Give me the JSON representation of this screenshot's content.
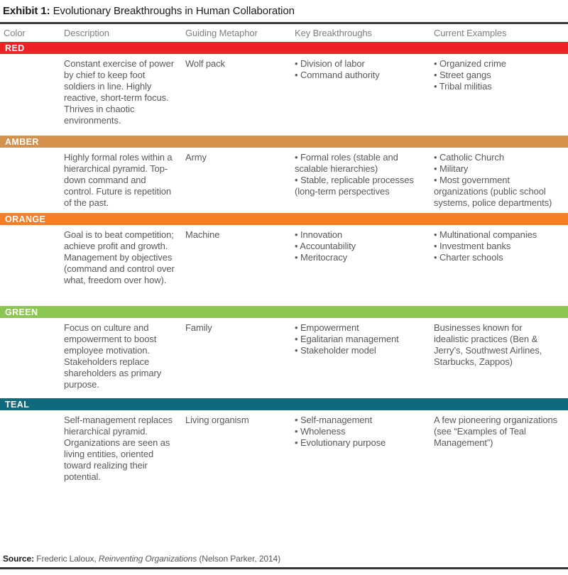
{
  "title": {
    "prefix": "Exhibit 1:",
    "rest": " Evolutionary Breakthroughs in Human Collaboration"
  },
  "header": {
    "columns": [
      "Color",
      "Description",
      "Guiding Metaphor",
      "Key Breakthroughs",
      "Current Examples"
    ]
  },
  "rows": [
    {
      "label": "RED",
      "color": "#EC2227",
      "description": "Constant exercise of power by chief to keep foot soldiers in line. Highly reactive, short-term focus. Thrives in chaotic environments.",
      "metaphor": "Wolf pack",
      "breakthroughs": [
        "Division of labor",
        "Command authority"
      ],
      "examples": [
        "Organized crime",
        "Street gangs",
        "Tribal militias"
      ]
    },
    {
      "label": "AMBER",
      "color": "#D5914B",
      "description": "Highly formal roles within a hierarchical pyramid. Top-down command and control. Future is repetition of the past.",
      "metaphor": "Army",
      "breakthroughs": [
        "Formal roles (stable and scalable hierarchies)",
        "Stable, replicable processes (long-term perspectives"
      ],
      "examples": [
        "Catholic Church",
        "Military",
        "Most government organizations (public school systems, police departments)"
      ]
    },
    {
      "label": "ORANGE",
      "color": "#F57E24",
      "description": "Goal is to beat competition; achieve profit and growth. Management by objectives (command and control over what, freedom over how).",
      "metaphor": "Machine",
      "breakthroughs": [
        "Innovation",
        "Accountability",
        "Meritocracy"
      ],
      "examples": [
        "Multinational companies",
        "Investment banks",
        "Charter schools"
      ]
    },
    {
      "label": "GREEN",
      "color": "#8CC652",
      "description": "Focus on culture and empowerment to boost employee motivation. Stakeholders replace shareholders as primary purpose.",
      "metaphor": "Family",
      "breakthroughs": [
        "Empowerment",
        "Egalitarian management",
        "Stakeholder model"
      ],
      "examples_paragraph": "Businesses known for idealistic practices (Ben & Jerry’s, Southwest Airlines, Starbucks, Zappos)"
    },
    {
      "label": "TEAL",
      "color": "#0F6A7D",
      "description": "Self-management replaces hierarchical pyramid. Organizations are seen as living entities, oriented toward realizing their potential.",
      "metaphor": "Living organism",
      "breakthroughs": [
        "Self-management",
        "Wholeness",
        "Evolutionary purpose"
      ],
      "examples_paragraph": "A few pioneering organizations (see “Examples of Teal Management”)"
    }
  ],
  "source": {
    "label": "Source:",
    "author": " Frederic Laloux, ",
    "work": "Reinventing Organizations",
    "publisher": " (Nelson Parker, 2014)"
  }
}
